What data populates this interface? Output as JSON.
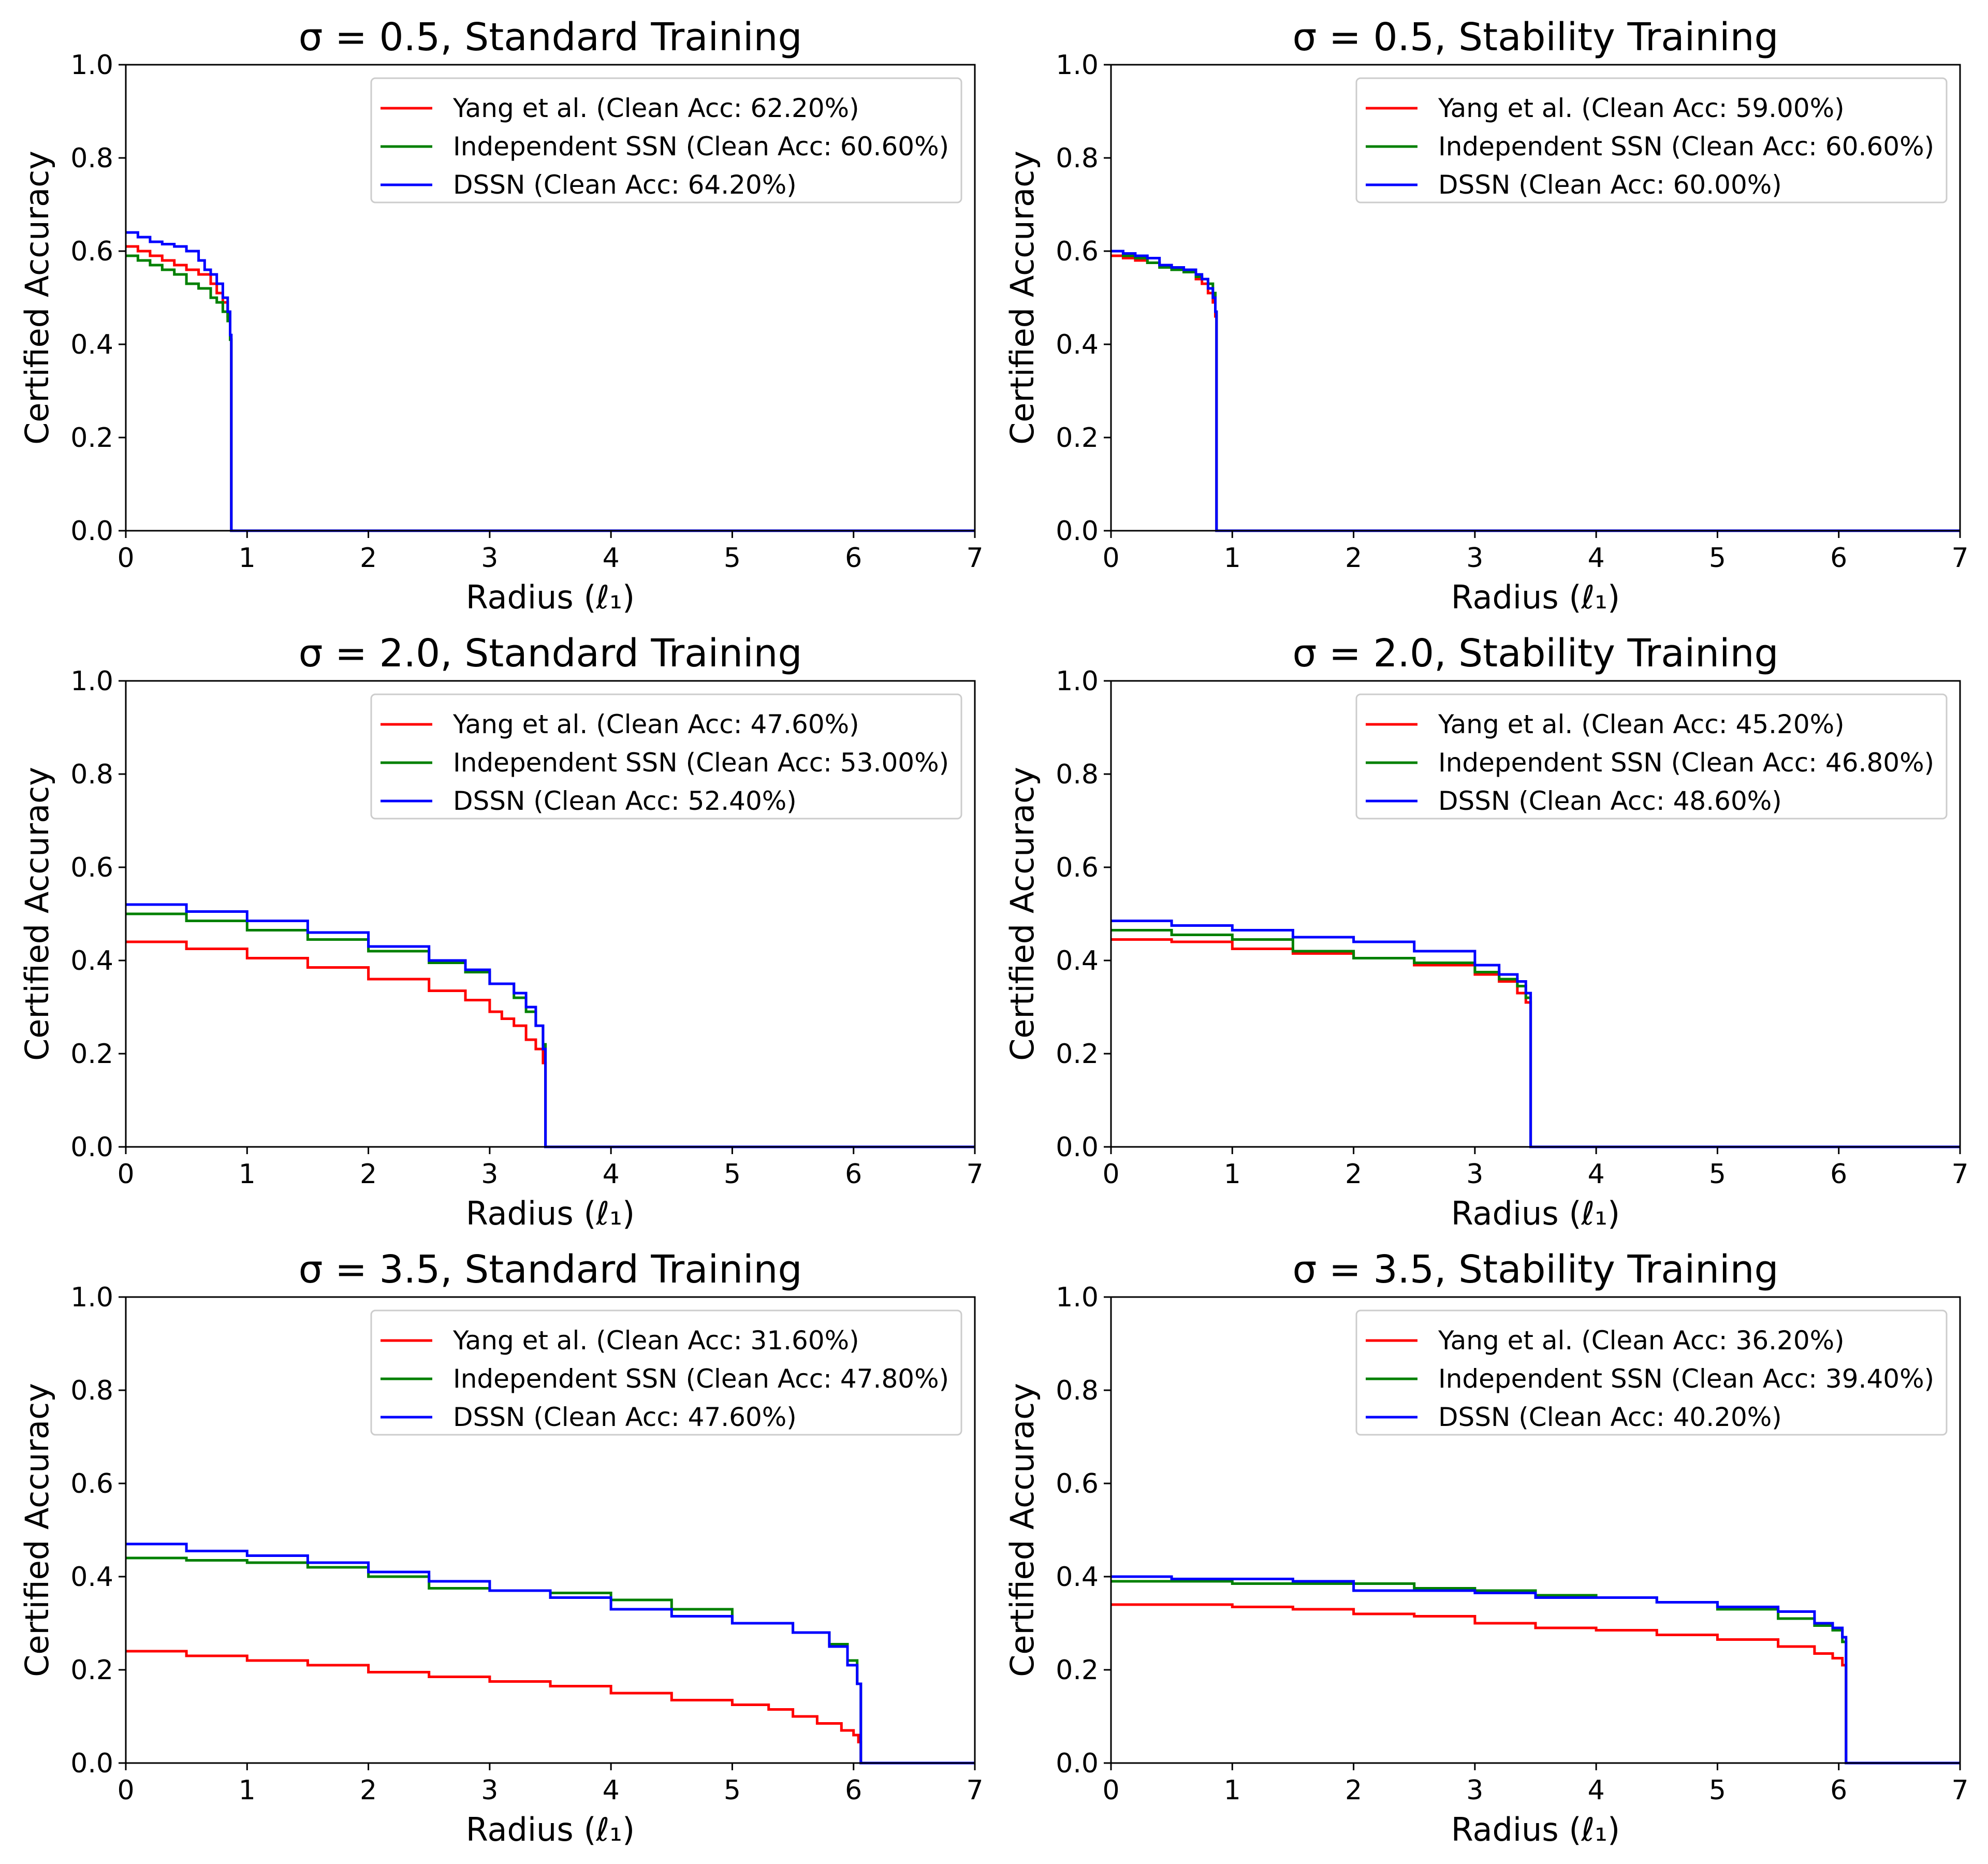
{
  "chart_data": [
    {
      "type": "line",
      "title": "σ = 0.5, Standard Training",
      "xlabel": "Radius (ℓ₁)",
      "ylabel": "Certified Accuracy",
      "xlim": [
        0,
        7
      ],
      "ylim": [
        0,
        1.0
      ],
      "xticks": [
        "0",
        "1",
        "2",
        "3",
        "4",
        "5",
        "6",
        "7"
      ],
      "yticks": [
        "0.0",
        "0.2",
        "0.4",
        "0.6",
        "0.8",
        "1.0"
      ],
      "legend": "top-right",
      "series": [
        {
          "name": "Yang et al. (Clean Acc: 62.20%)",
          "color": "#ff0000",
          "x": [
            0,
            0.1,
            0.2,
            0.3,
            0.4,
            0.5,
            0.6,
            0.7,
            0.75,
            0.8,
            0.84,
            0.86,
            0.87,
            0.87,
            7.0
          ],
          "y": [
            0.61,
            0.6,
            0.59,
            0.58,
            0.57,
            0.56,
            0.55,
            0.53,
            0.51,
            0.49,
            0.46,
            0.41,
            0.3,
            0.0,
            0.0
          ]
        },
        {
          "name": "Independent SSN (Clean Acc: 60.60%)",
          "color": "#008000",
          "x": [
            0,
            0.1,
            0.2,
            0.3,
            0.4,
            0.5,
            0.6,
            0.7,
            0.75,
            0.8,
            0.84,
            0.86,
            0.87,
            0.87,
            7.0
          ],
          "y": [
            0.59,
            0.58,
            0.57,
            0.56,
            0.55,
            0.53,
            0.52,
            0.5,
            0.49,
            0.47,
            0.45,
            0.41,
            0.3,
            0.0,
            0.0
          ]
        },
        {
          "name": "DSSN (Clean Acc: 64.20%)",
          "color": "#0000ff",
          "x": [
            0,
            0.1,
            0.2,
            0.3,
            0.4,
            0.5,
            0.6,
            0.65,
            0.7,
            0.75,
            0.8,
            0.84,
            0.86,
            0.87,
            0.87,
            7.0
          ],
          "y": [
            0.64,
            0.63,
            0.62,
            0.615,
            0.61,
            0.6,
            0.58,
            0.56,
            0.55,
            0.53,
            0.5,
            0.47,
            0.42,
            0.3,
            0.0,
            0.0
          ]
        }
      ]
    },
    {
      "type": "line",
      "title": "σ = 0.5, Stability Training",
      "xlabel": "Radius (ℓ₁)",
      "ylabel": "Certified Accuracy",
      "xlim": [
        0,
        7
      ],
      "ylim": [
        0,
        1.0
      ],
      "xticks": [
        "0",
        "1",
        "2",
        "3",
        "4",
        "5",
        "6",
        "7"
      ],
      "yticks": [
        "0.0",
        "0.2",
        "0.4",
        "0.6",
        "0.8",
        "1.0"
      ],
      "legend": "top-right",
      "series": [
        {
          "name": "Yang et al. (Clean Acc: 59.00%)",
          "color": "#ff0000",
          "x": [
            0,
            0.1,
            0.2,
            0.3,
            0.4,
            0.5,
            0.6,
            0.7,
            0.75,
            0.8,
            0.84,
            0.86,
            0.87,
            0.87,
            7.0
          ],
          "y": [
            0.59,
            0.585,
            0.58,
            0.575,
            0.57,
            0.56,
            0.555,
            0.54,
            0.53,
            0.51,
            0.49,
            0.46,
            0.3,
            0.0,
            0.0
          ]
        },
        {
          "name": "Independent SSN (Clean Acc: 60.60%)",
          "color": "#008000",
          "x": [
            0,
            0.1,
            0.2,
            0.3,
            0.4,
            0.5,
            0.6,
            0.7,
            0.75,
            0.8,
            0.84,
            0.86,
            0.87,
            0.87,
            7.0
          ],
          "y": [
            0.6,
            0.59,
            0.585,
            0.575,
            0.565,
            0.56,
            0.555,
            0.545,
            0.54,
            0.53,
            0.51,
            0.47,
            0.3,
            0.0,
            0.0
          ]
        },
        {
          "name": "DSSN (Clean Acc: 60.00%)",
          "color": "#0000ff",
          "x": [
            0,
            0.1,
            0.2,
            0.3,
            0.4,
            0.5,
            0.6,
            0.7,
            0.75,
            0.8,
            0.84,
            0.86,
            0.87,
            0.87,
            7.0
          ],
          "y": [
            0.6,
            0.595,
            0.59,
            0.585,
            0.57,
            0.565,
            0.56,
            0.55,
            0.54,
            0.52,
            0.5,
            0.47,
            0.3,
            0.0,
            0.0
          ]
        }
      ]
    },
    {
      "type": "line",
      "title": "σ = 2.0, Standard Training",
      "xlabel": "Radius (ℓ₁)",
      "ylabel": "Certified Accuracy",
      "xlim": [
        0,
        7
      ],
      "ylim": [
        0,
        1.0
      ],
      "xticks": [
        "0",
        "1",
        "2",
        "3",
        "4",
        "5",
        "6",
        "7"
      ],
      "yticks": [
        "0.0",
        "0.2",
        "0.4",
        "0.6",
        "0.8",
        "1.0"
      ],
      "legend": "top-right",
      "series": [
        {
          "name": "Yang et al. (Clean Acc: 47.60%)",
          "color": "#ff0000",
          "x": [
            0,
            0.5,
            1.0,
            1.5,
            2.0,
            2.5,
            2.8,
            3.0,
            3.1,
            3.2,
            3.3,
            3.38,
            3.44,
            3.46,
            3.46,
            7.0
          ],
          "y": [
            0.44,
            0.425,
            0.405,
            0.385,
            0.36,
            0.335,
            0.315,
            0.29,
            0.275,
            0.26,
            0.23,
            0.21,
            0.18,
            0.13,
            0.0,
            0.0
          ]
        },
        {
          "name": "Independent SSN (Clean Acc: 53.00%)",
          "color": "#008000",
          "x": [
            0,
            0.5,
            1.0,
            1.5,
            2.0,
            2.5,
            2.8,
            3.0,
            3.2,
            3.3,
            3.38,
            3.44,
            3.46,
            3.46,
            7.0
          ],
          "y": [
            0.5,
            0.485,
            0.465,
            0.445,
            0.42,
            0.395,
            0.375,
            0.35,
            0.32,
            0.29,
            0.26,
            0.22,
            0.16,
            0.0,
            0.0
          ]
        },
        {
          "name": "DSSN (Clean Acc: 52.40%)",
          "color": "#0000ff",
          "x": [
            0,
            0.5,
            1.0,
            1.5,
            2.0,
            2.5,
            2.8,
            3.0,
            3.2,
            3.3,
            3.38,
            3.44,
            3.46,
            3.46,
            7.0
          ],
          "y": [
            0.52,
            0.505,
            0.485,
            0.46,
            0.43,
            0.4,
            0.38,
            0.35,
            0.33,
            0.3,
            0.26,
            0.21,
            0.14,
            0.0,
            0.0
          ]
        }
      ]
    },
    {
      "type": "line",
      "title": "σ = 2.0, Stability Training",
      "xlabel": "Radius (ℓ₁)",
      "ylabel": "Certified Accuracy",
      "xlim": [
        0,
        7
      ],
      "ylim": [
        0,
        1.0
      ],
      "xticks": [
        "0",
        "1",
        "2",
        "3",
        "4",
        "5",
        "6",
        "7"
      ],
      "yticks": [
        "0.0",
        "0.2",
        "0.4",
        "0.6",
        "0.8",
        "1.0"
      ],
      "legend": "top-right",
      "series": [
        {
          "name": "Yang et al. (Clean Acc: 45.20%)",
          "color": "#ff0000",
          "x": [
            0,
            0.5,
            1.0,
            1.5,
            2.0,
            2.5,
            3.0,
            3.2,
            3.35,
            3.42,
            3.46,
            3.46,
            7.0
          ],
          "y": [
            0.445,
            0.44,
            0.425,
            0.415,
            0.405,
            0.39,
            0.37,
            0.355,
            0.33,
            0.31,
            0.25,
            0.0,
            0.0
          ]
        },
        {
          "name": "Independent SSN (Clean Acc: 46.80%)",
          "color": "#008000",
          "x": [
            0,
            0.5,
            1.0,
            1.5,
            2.0,
            2.5,
            3.0,
            3.2,
            3.35,
            3.42,
            3.46,
            3.46,
            7.0
          ],
          "y": [
            0.465,
            0.455,
            0.445,
            0.42,
            0.405,
            0.395,
            0.375,
            0.36,
            0.345,
            0.32,
            0.25,
            0.0,
            0.0
          ]
        },
        {
          "name": "DSSN (Clean Acc: 48.60%)",
          "color": "#0000ff",
          "x": [
            0,
            0.5,
            1.0,
            1.5,
            2.0,
            2.5,
            3.0,
            3.2,
            3.35,
            3.42,
            3.46,
            3.46,
            7.0
          ],
          "y": [
            0.485,
            0.475,
            0.465,
            0.45,
            0.44,
            0.42,
            0.39,
            0.37,
            0.355,
            0.33,
            0.25,
            0.0,
            0.0
          ]
        }
      ]
    },
    {
      "type": "line",
      "title": "σ = 3.5, Standard Training",
      "xlabel": "Radius (ℓ₁)",
      "ylabel": "Certified Accuracy",
      "xlim": [
        0,
        7
      ],
      "ylim": [
        0,
        1.0
      ],
      "xticks": [
        "0",
        "1",
        "2",
        "3",
        "4",
        "5",
        "6",
        "7"
      ],
      "yticks": [
        "0.0",
        "0.2",
        "0.4",
        "0.6",
        "0.8",
        "1.0"
      ],
      "legend": "top-right",
      "series": [
        {
          "name": "Yang et al. (Clean Acc: 31.60%)",
          "color": "#ff0000",
          "x": [
            0,
            0.5,
            1.0,
            1.5,
            2.0,
            2.5,
            3.0,
            3.5,
            4.0,
            4.5,
            5.0,
            5.3,
            5.5,
            5.7,
            5.9,
            6.0,
            6.04,
            6.06,
            6.06,
            7.0
          ],
          "y": [
            0.24,
            0.23,
            0.22,
            0.21,
            0.195,
            0.185,
            0.175,
            0.165,
            0.15,
            0.135,
            0.125,
            0.115,
            0.1,
            0.085,
            0.07,
            0.06,
            0.045,
            0.03,
            0.0,
            0.0
          ]
        },
        {
          "name": "Independent SSN (Clean Acc: 47.80%)",
          "color": "#008000",
          "x": [
            0,
            0.5,
            1.0,
            1.5,
            2.0,
            2.5,
            3.0,
            3.5,
            4.0,
            4.5,
            5.0,
            5.5,
            5.8,
            5.95,
            6.03,
            6.06,
            6.06,
            7.0
          ],
          "y": [
            0.44,
            0.435,
            0.43,
            0.42,
            0.4,
            0.375,
            0.37,
            0.365,
            0.35,
            0.33,
            0.3,
            0.28,
            0.255,
            0.22,
            0.17,
            0.11,
            0.0,
            0.0
          ]
        },
        {
          "name": "DSSN (Clean Acc: 47.60%)",
          "color": "#0000ff",
          "x": [
            0,
            0.5,
            1.0,
            1.5,
            2.0,
            2.5,
            3.0,
            3.5,
            4.0,
            4.5,
            5.0,
            5.5,
            5.8,
            5.95,
            6.03,
            6.06,
            6.06,
            7.0
          ],
          "y": [
            0.47,
            0.455,
            0.445,
            0.43,
            0.41,
            0.39,
            0.37,
            0.355,
            0.33,
            0.315,
            0.3,
            0.28,
            0.25,
            0.21,
            0.17,
            0.11,
            0.0,
            0.0
          ]
        }
      ]
    },
    {
      "type": "line",
      "title": "σ = 3.5, Stability Training",
      "xlabel": "Radius (ℓ₁)",
      "ylabel": "Certified Accuracy",
      "xlim": [
        0,
        7
      ],
      "ylim": [
        0,
        1.0
      ],
      "xticks": [
        "0",
        "1",
        "2",
        "3",
        "4",
        "5",
        "6",
        "7"
      ],
      "yticks": [
        "0.0",
        "0.2",
        "0.4",
        "0.6",
        "0.8",
        "1.0"
      ],
      "legend": "top-right",
      "series": [
        {
          "name": "Yang et al. (Clean Acc: 36.20%)",
          "color": "#ff0000",
          "x": [
            0,
            0.5,
            1.0,
            1.5,
            2.0,
            2.5,
            3.0,
            3.5,
            4.0,
            4.5,
            5.0,
            5.5,
            5.8,
            5.95,
            6.03,
            6.06,
            6.06,
            7.0
          ],
          "y": [
            0.34,
            0.34,
            0.335,
            0.33,
            0.32,
            0.315,
            0.3,
            0.29,
            0.285,
            0.275,
            0.265,
            0.25,
            0.235,
            0.225,
            0.21,
            0.17,
            0.0,
            0.0
          ]
        },
        {
          "name": "Independent SSN (Clean Acc: 39.40%)",
          "color": "#008000",
          "x": [
            0,
            0.5,
            1.0,
            1.5,
            2.0,
            2.5,
            3.0,
            3.5,
            4.0,
            4.5,
            5.0,
            5.5,
            5.8,
            5.95,
            6.03,
            6.06,
            6.06,
            7.0
          ],
          "y": [
            0.39,
            0.39,
            0.385,
            0.385,
            0.385,
            0.375,
            0.37,
            0.36,
            0.355,
            0.345,
            0.33,
            0.31,
            0.295,
            0.285,
            0.26,
            0.2,
            0.0,
            0.0
          ]
        },
        {
          "name": "DSSN (Clean Acc: 40.20%)",
          "color": "#0000ff",
          "x": [
            0,
            0.5,
            1.0,
            1.5,
            2.0,
            2.5,
            3.0,
            3.5,
            4.0,
            4.5,
            5.0,
            5.5,
            5.8,
            5.95,
            6.03,
            6.06,
            6.06,
            7.0
          ],
          "y": [
            0.4,
            0.395,
            0.395,
            0.39,
            0.37,
            0.37,
            0.365,
            0.355,
            0.355,
            0.345,
            0.335,
            0.325,
            0.3,
            0.29,
            0.27,
            0.2,
            0.0,
            0.0
          ]
        }
      ]
    }
  ]
}
